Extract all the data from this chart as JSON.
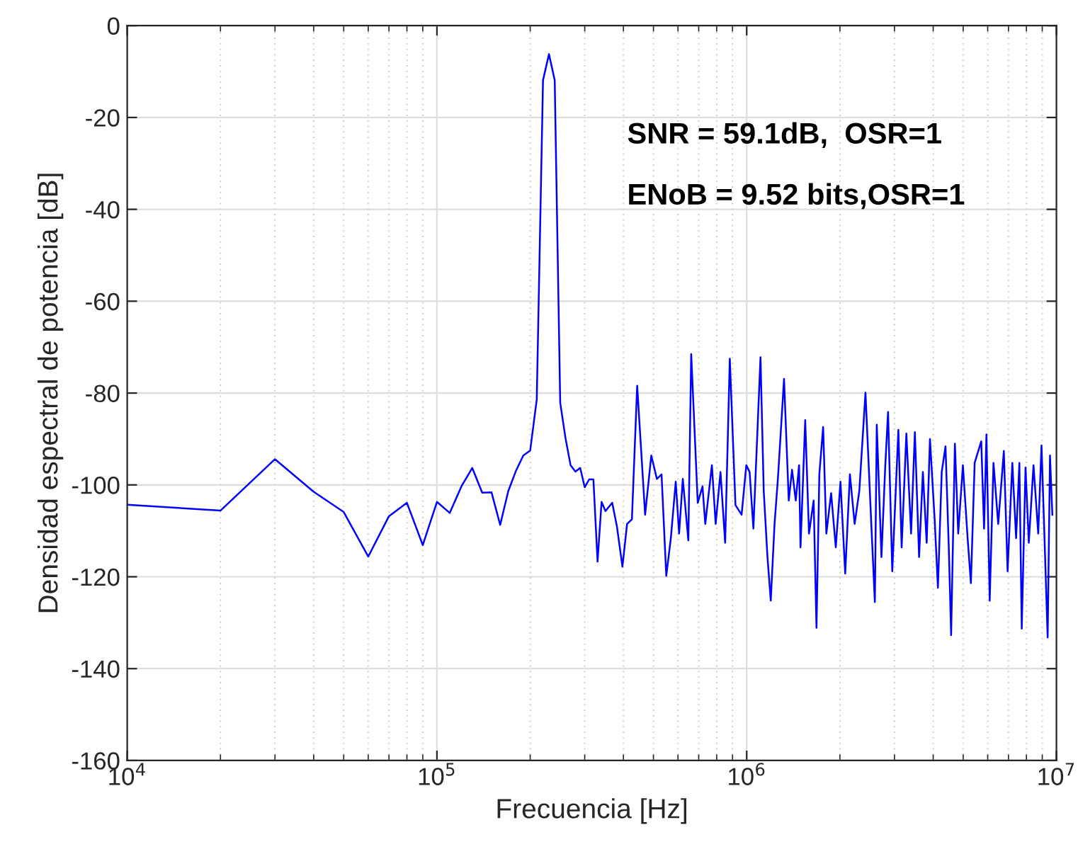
{
  "chart_data": {
    "type": "line",
    "xlabel": "Frecuencia [Hz]",
    "ylabel": "Densidad espectral de potencia [dB]",
    "annotations": [
      "SNR = 59.1dB,  OSR=1",
      "ENoB = 9.52 bits,OSR=1"
    ],
    "log": "x",
    "grid": true,
    "xlim": [
      10000,
      10000000
    ],
    "ylim": [
      -160,
      0
    ],
    "xticks": [
      {
        "value": 10000,
        "label": "10$^{4}$"
      },
      {
        "value": 100000,
        "label": "10$^{5}$"
      },
      {
        "value": 1000000,
        "label": "10$^{6}$"
      },
      {
        "value": 10000000,
        "label": "10$^{7}$"
      }
    ],
    "yticks": [
      -160,
      -140,
      -120,
      -100,
      -80,
      -60,
      -40,
      -20,
      0
    ],
    "series": [
      {
        "color": "#0000ff",
        "x": [
          10000,
          20000,
          30000,
          40000,
          50000,
          60000,
          70000,
          80000,
          90000,
          100000,
          110000,
          120000,
          130000,
          140000,
          150000,
          160000,
          170000,
          180000,
          190000,
          200000,
          210000,
          220000,
          230000,
          240000,
          250000,
          260000,
          270000,
          280000,
          290000,
          300000,
          310000,
          320000,
          330000,
          340000,
          350000,
          368000,
          381000,
          397000,
          411000,
          426000,
          443000,
          470000,
          492000,
          513000,
          531000,
          550000,
          569000,
          590000,
          605000,
          622000,
          648000,
          662000,
          695000,
          720000,
          735000,
          772000,
          794000,
          823000,
          852000,
          882000,
          920000,
          963000,
          997000,
          1022000,
          1051000,
          1108000,
          1135000,
          1167000,
          1196000,
          1230000,
          1261000,
          1320000,
          1367000,
          1401000,
          1440000,
          1476000,
          1492000,
          1545000,
          1589000,
          1645000,
          1680000,
          1716000,
          1765000,
          1808000,
          1873000,
          1939000,
          2008000,
          2080000,
          2154000,
          2231000,
          2310000,
          2418000,
          2521000,
          2593000,
          2630000,
          2723000,
          2800000,
          2860000,
          2951000,
          3088000,
          3164000,
          3277000,
          3394000,
          3491000,
          3602000,
          3705000,
          3811000,
          3905000,
          4044000,
          4144000,
          4262000,
          4384000,
          4492000,
          4571000,
          4701000,
          4818000,
          4989000,
          5167000,
          5295000,
          5445000,
          5718000,
          5839000,
          5943000,
          6089000,
          6263000,
          6486000,
          6764000,
          6956000,
          7204000,
          7409000,
          7592000,
          7727000,
          7947000,
          8143000,
          8433000,
          8733000,
          8949000,
          9141000,
          9368000,
          9533000,
          9701000
        ],
        "values": [
          -104.3,
          -105.6,
          -94.4,
          -101.5,
          -105.9,
          -115.6,
          -106.8,
          -103.9,
          -113.1,
          -103.7,
          -106.1,
          -100.3,
          -96.3,
          -101.7,
          -101.6,
          -108.7,
          -101.3,
          -96.9,
          -93.6,
          -92.5,
          -81.4,
          -11.9,
          -6.2,
          -11.9,
          -82.1,
          -89.8,
          -95.7,
          -97.1,
          -96.3,
          -100.5,
          -98.8,
          -98.8,
          -116.7,
          -103.7,
          -105.7,
          -103.9,
          -109.0,
          -117.8,
          -108.5,
          -107.5,
          -78.4,
          -106.5,
          -93.6,
          -98.7,
          -97.7,
          -119.8,
          -111.6,
          -99.3,
          -110.6,
          -98.7,
          -112.1,
          -71.5,
          -103.9,
          -100.3,
          -108.5,
          -95.7,
          -108.5,
          -97.2,
          -112.6,
          -72.5,
          -104.4,
          -106.5,
          -95.7,
          -97.2,
          -109.5,
          -72.2,
          -101.3,
          -115.7,
          -125.2,
          -108.5,
          -98.7,
          -76.9,
          -103.4,
          -96.7,
          -103.4,
          -95.7,
          -113.6,
          -85.9,
          -110.6,
          -103.4,
          -131.1,
          -97.7,
          -87.4,
          -110.6,
          -101.8,
          -113.6,
          -99.3,
          -119.3,
          -97.7,
          -108.5,
          -101.3,
          -79.9,
          -107.5,
          -125.5,
          -86.9,
          -115.7,
          -96.2,
          -84.1,
          -118.8,
          -88.0,
          -113.6,
          -88.8,
          -110.6,
          -88.5,
          -115.7,
          -97.2,
          -112.6,
          -90.0,
          -107.5,
          -122.4,
          -97.2,
          -91.6,
          -113.6,
          -132.7,
          -91.0,
          -110.6,
          -95.7,
          -111.6,
          -121.4,
          -95.2,
          -90.5,
          -109.5,
          -89.0,
          -125.2,
          -95.2,
          -108.5,
          -92.6,
          -118.8,
          -95.2,
          -111.6,
          -95.2,
          -131.3,
          -96.2,
          -112.6,
          -95.7,
          -110.6,
          -91.4,
          -110.6,
          -133.2,
          -93.6,
          -106.5
        ]
      }
    ]
  }
}
